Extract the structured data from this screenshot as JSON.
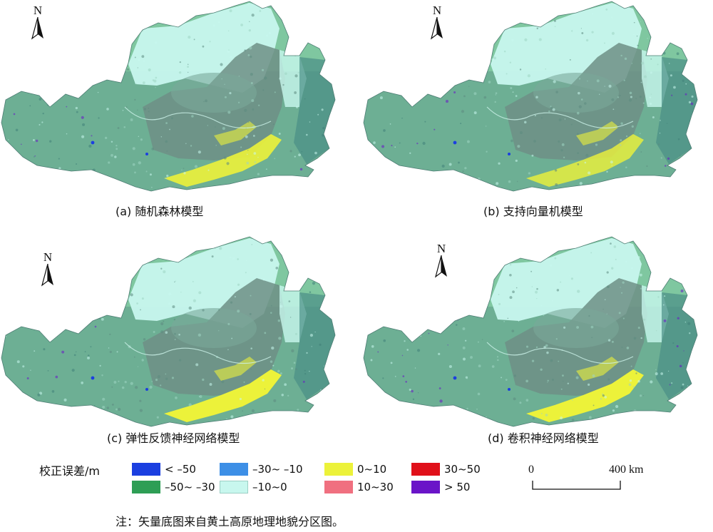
{
  "north_label": "N",
  "panels": [
    {
      "id": "a",
      "caption": "(a) 随机森林模型"
    },
    {
      "id": "b",
      "caption": "(b) 支持向量机模型"
    },
    {
      "id": "c",
      "caption": "(c) 弹性反馈神经网络模型"
    },
    {
      "id": "d",
      "caption": "(d) 卷积神经网络模型"
    }
  ],
  "legend": {
    "title": "校正误差/m",
    "items": [
      {
        "label": "< –50",
        "color": "#1b3fe0"
      },
      {
        "label": "–50~ –30",
        "color": "#2e9e55"
      },
      {
        "label": "–30~ –10",
        "color": "#3d8fe6"
      },
      {
        "label": "–10~0",
        "color": "#c8f7ee"
      },
      {
        "label": "0~10",
        "color": "#ecf23a"
      },
      {
        "label": "10~30",
        "color": "#f07080"
      },
      {
        "label": "30~50",
        "color": "#e0101a"
      },
      {
        "label": "> 50",
        "color": "#6a14c8"
      }
    ]
  },
  "scale_bar": {
    "start": "0",
    "end": "400 km"
  },
  "note": "注：矢量底图来自黄土高原地理地貌分区图。"
}
